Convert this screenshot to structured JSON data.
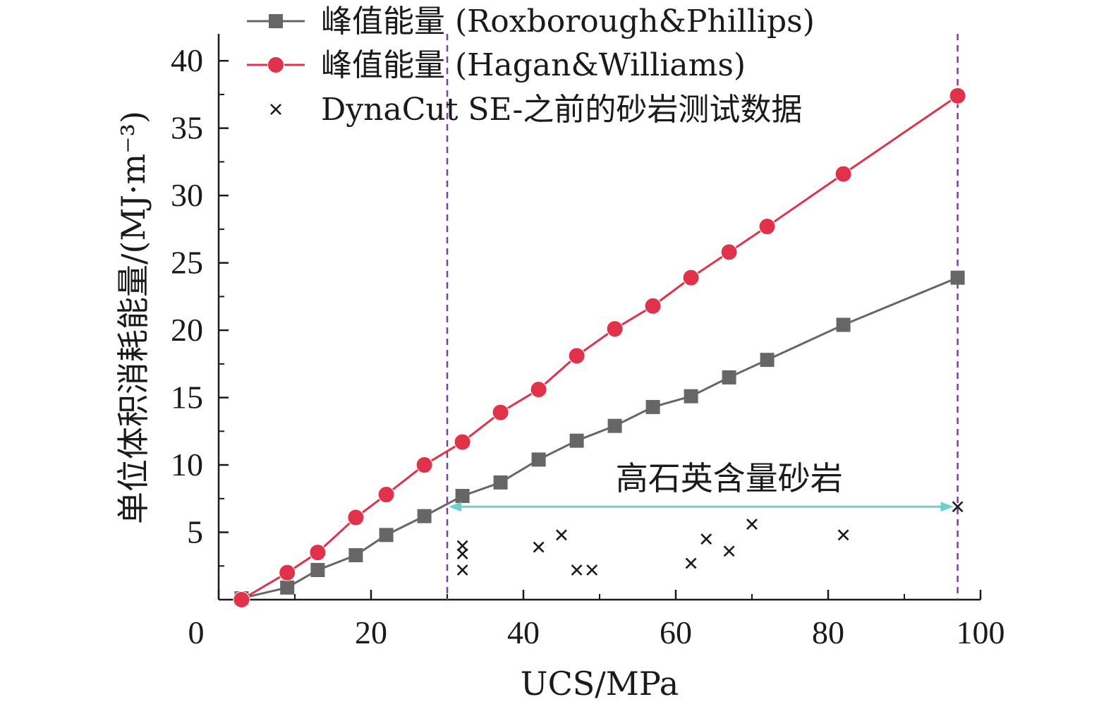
{
  "chart_data": {
    "type": "line",
    "xlabel": "UCS/MPa",
    "ylabel": "单位体积消耗能量/(MJ·m⁻³)",
    "xlim": [
      0,
      100
    ],
    "ylim": [
      0,
      42
    ],
    "x_ticks": [
      0,
      20,
      40,
      60,
      80,
      100
    ],
    "y_ticks": [
      5,
      10,
      15,
      20,
      25,
      30,
      35,
      40
    ],
    "grid": false,
    "legend_position": "top",
    "series": [
      {
        "name": "峰值能量 (Roxborough&Phillips)",
        "marker": "square",
        "color": "#666666",
        "points": [
          [
            3,
            0.1
          ],
          [
            9,
            0.9
          ],
          [
            13,
            2.2
          ],
          [
            18,
            3.3
          ],
          [
            22,
            4.8
          ],
          [
            27,
            6.2
          ],
          [
            32,
            7.7
          ],
          [
            37,
            8.7
          ],
          [
            42,
            10.4
          ],
          [
            47,
            11.8
          ],
          [
            52,
            12.9
          ],
          [
            57,
            14.3
          ],
          [
            62,
            15.1
          ],
          [
            67,
            16.5
          ],
          [
            72,
            17.8
          ],
          [
            82,
            20.4
          ],
          [
            97,
            23.9
          ]
        ]
      },
      {
        "name": "峰值能量 (Hagan&Williams)",
        "marker": "circle",
        "color": "#e0324a",
        "points": [
          [
            3,
            0.0
          ],
          [
            9,
            2.0
          ],
          [
            13,
            3.5
          ],
          [
            18,
            6.1
          ],
          [
            22,
            7.8
          ],
          [
            27,
            10.0
          ],
          [
            32,
            11.7
          ],
          [
            37,
            13.9
          ],
          [
            42,
            15.6
          ],
          [
            47,
            18.1
          ],
          [
            52,
            20.1
          ],
          [
            57,
            21.8
          ],
          [
            62,
            23.9
          ],
          [
            67,
            25.8
          ],
          [
            72,
            27.7
          ],
          [
            82,
            31.6
          ],
          [
            97,
            37.4
          ]
        ]
      },
      {
        "name": "DynaCut SE-之前的砂岩测试数据",
        "marker": "x",
        "color": "#1a1a1a",
        "points": [
          [
            32,
            4.0
          ],
          [
            32,
            3.4
          ],
          [
            32,
            2.2
          ],
          [
            42,
            3.9
          ],
          [
            45,
            4.8
          ],
          [
            47,
            2.2
          ],
          [
            49,
            2.2
          ],
          [
            62,
            2.7
          ],
          [
            64,
            4.5
          ],
          [
            67,
            3.6
          ],
          [
            70,
            5.6
          ],
          [
            82,
            4.8
          ],
          [
            97,
            6.9
          ]
        ]
      }
    ],
    "annotations": {
      "region_label": "高石英含量砂岩",
      "region_x_range": [
        30,
        97
      ],
      "region_arrow_y": 6.9,
      "region_label_y": 9.0,
      "vlines": [
        30,
        97
      ],
      "arrow_color": "#6ccfd0",
      "vline_color": "#7a3f9a"
    }
  }
}
